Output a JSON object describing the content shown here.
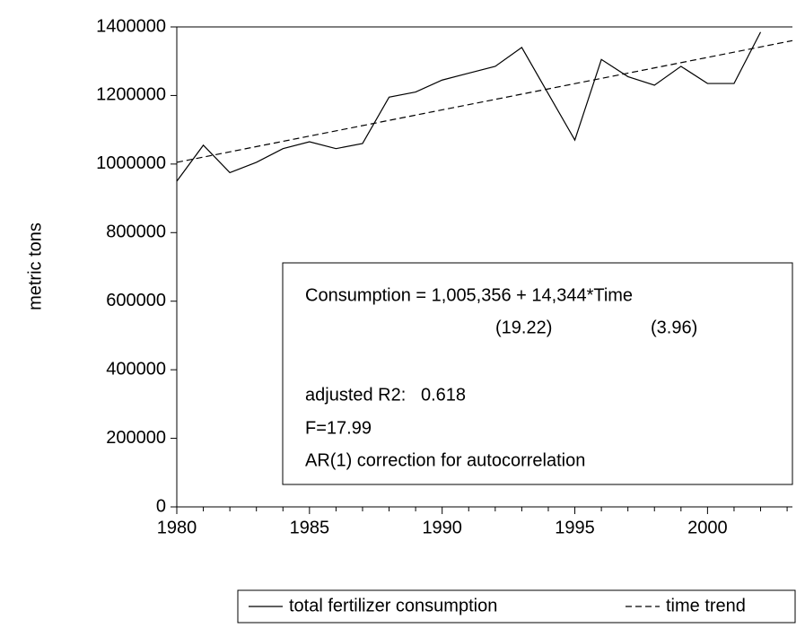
{
  "chart_data": {
    "type": "line",
    "y_label": "metric tons",
    "x": [
      1980,
      1981,
      1982,
      1983,
      1984,
      1985,
      1986,
      1987,
      1988,
      1989,
      1990,
      1991,
      1992,
      1993,
      1994,
      1995,
      1996,
      1997,
      1998,
      1999,
      2000,
      2001,
      2002
    ],
    "series": [
      {
        "name": "total fertilizer consumption",
        "color": "#000000",
        "dash": "solid",
        "values": [
          950000,
          1055000,
          975000,
          1005000,
          1045000,
          1065000,
          1045000,
          1060000,
          1195000,
          1210000,
          1245000,
          1265000,
          1285000,
          1340000,
          1205000,
          1070000,
          1305000,
          1255000,
          1230000,
          1285000,
          1235000,
          1235000,
          1385000
        ]
      },
      {
        "name": "time trend",
        "color": "#000000",
        "dash": "dashed",
        "x": [
          1980,
          2003.2
        ],
        "values": [
          1005000,
          1360000
        ]
      }
    ],
    "xlim": [
      1980,
      2003.2
    ],
    "ylim": [
      0,
      1400000
    ],
    "xticks": [
      1980,
      1985,
      1990,
      1995,
      2000
    ],
    "xminorticks": [
      1981,
      1982,
      1983,
      1984,
      1986,
      1987,
      1988,
      1989,
      1991,
      1992,
      1993,
      1994,
      1996,
      1997,
      1998,
      1999,
      2001,
      2002,
      2003
    ],
    "yticks": [
      0,
      200000,
      400000,
      600000,
      800000,
      1000000,
      1200000,
      1400000
    ],
    "annotation_lines": [
      "Consumption = 1,005,356 + 14,344*Time",
      "(19.22)",
      "(3.96)",
      "adjusted R2:   0.618",
      "F=17.99",
      "AR(1) correction for autocorrelation"
    ],
    "legend_position": "bottom"
  }
}
